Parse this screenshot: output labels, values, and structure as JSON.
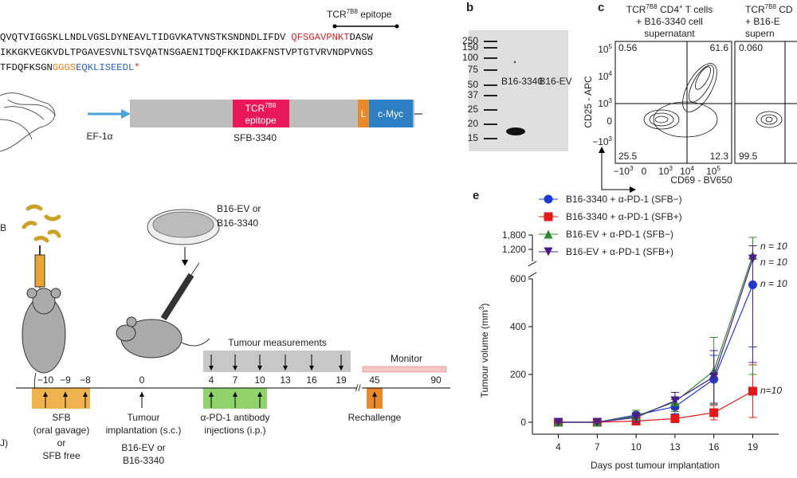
{
  "panel_a": {
    "epitope_label": {
      "base": "TCR",
      "sup": "7B8",
      "rest": " epitope"
    },
    "sequence": [
      [
        {
          "text": "QVQTVIGGSKLLNDLVGSLDYNEAVLTIDGVKATVNSTKSNDNDLIFDV",
          "color": "#111111"
        },
        {
          "text": "QFSGAVPNKT",
          "color": "#d62728"
        },
        {
          "text": "DASW",
          "color": "#111111"
        }
      ],
      [
        {
          "text": "IKKGKVEGKVDLTPGAVESVNLTSVQATNSGAENITDQFKKIDAKFNSTVPTGTVRVNDPVNGS",
          "color": "#111111"
        }
      ],
      [
        {
          "text": "TFDQFKSGN",
          "color": "#111111"
        },
        {
          "text": "GGGS",
          "color": "#e07b1a"
        },
        {
          "text": "EQKLISEEDL",
          "color": "#2a63b8"
        },
        {
          "text": "*",
          "color": "#d62728"
        }
      ]
    ],
    "construct": {
      "promoter": "EF-1α",
      "epitope": {
        "base": "TCR",
        "sup": "7B8",
        "rest": "epitope"
      },
      "linker": "L",
      "tag": "c-Myc",
      "name": "SFB-3340"
    }
  },
  "panel_b": {
    "label": "b",
    "ladder": [
      "250",
      "150",
      "100",
      "75",
      "50",
      "37",
      "25",
      "20",
      "15"
    ],
    "lanes": [
      "B16-3340",
      "B16-EV"
    ]
  },
  "panel_c": {
    "label": "c",
    "plot1": {
      "title": [
        [
          {
            "t": "TCR"
          },
          {
            "t": "7B8",
            "sup": true
          },
          {
            "t": " CD4"
          },
          {
            "t": "+",
            "sup": true
          },
          {
            "t": " T cells"
          }
        ],
        [
          {
            "t": "+ B16-3340 cell"
          }
        ],
        [
          {
            "t": "supernatant"
          }
        ]
      ],
      "quadrants": [
        "0.56",
        "61.6",
        "25.5",
        "12.3"
      ]
    },
    "plot2": {
      "title": [
        [
          {
            "t": "TCR"
          },
          {
            "t": "7B8",
            "sup": true
          },
          {
            "t": " CD"
          }
        ],
        [
          {
            "t": "+ B16-E"
          }
        ],
        [
          {
            "t": "supern"
          }
        ]
      ],
      "quadrants": [
        "0.060",
        "99.5"
      ]
    },
    "ylabel": "CD25 - APC",
    "xlabel": "CD69 - BV650",
    "yticks": [
      {
        "base": "10",
        "exp": "5"
      },
      {
        "base": "10",
        "exp": "4"
      },
      {
        "base": "10",
        "exp": "3"
      },
      {
        "base": "0"
      },
      {
        "base": "−10",
        "exp": "3"
      }
    ],
    "xticks": [
      {
        "base": "−10",
        "exp": "3"
      },
      {
        "base": "0"
      },
      {
        "base": "10",
        "exp": "3"
      },
      {
        "base": "10",
        "exp": "4"
      },
      {
        "base": "10",
        "exp": "5"
      }
    ]
  },
  "panel_d": {
    "corner": "B",
    "cutoff": "J)",
    "dish": [
      "B16-EV or",
      "B16-3340"
    ],
    "measurements": "Tumour measurements",
    "monitor": "Monitor",
    "ticks": [
      "−10",
      "−9",
      "−8",
      "0",
      "4",
      "7",
      "10",
      "13",
      "16",
      "19",
      "45",
      "90"
    ],
    "captions": [
      [
        "SFB",
        "(oral gavage)",
        "or",
        "SFB free"
      ],
      [
        "Tumour",
        "implantation (s.c.)",
        "B16-EV or",
        "B16-3340"
      ],
      [
        "α-PD-1 antibody",
        "injections (i.p.)"
      ],
      [
        "Rechallenge"
      ]
    ]
  },
  "chart_data": {
    "type": "line",
    "label": "e",
    "xlabel": "Days post tumour implantation",
    "ylabel": {
      "base": "Tumour volume (mm",
      "sup": "3",
      "rest": ")"
    },
    "x": [
      4,
      7,
      10,
      13,
      16,
      19
    ],
    "xlim": [
      2,
      21
    ],
    "xticks": [
      4,
      7,
      10,
      13,
      16,
      19
    ],
    "ylim": [
      -50,
      600
    ],
    "yticks": [
      0,
      200,
      400,
      600
    ],
    "ylim_top": [
      700,
      1800
    ],
    "yticks_top": [
      {
        "value": 1200,
        "label": "1,200"
      },
      {
        "value": 1800,
        "label": "1,800"
      }
    ],
    "series": [
      {
        "name": "B16-3340 + α-PD-1 (SFB−)",
        "color": "#1f3bd6",
        "marker": "circle",
        "values": [
          0,
          0,
          30,
          65,
          180,
          575
        ],
        "errors": [
          0,
          0,
          20,
          30,
          100,
          260
        ]
      },
      {
        "name": "B16-3340 + α-PD-1 (SFB+)",
        "color": "#e31a1c",
        "marker": "square",
        "values": [
          0,
          0,
          5,
          15,
          40,
          130
        ],
        "errors": [
          0,
          0,
          5,
          10,
          30,
          110
        ]
      },
      {
        "name": "B16-EV + α-PD-1 (SFB−)",
        "color": "#2e8b2e",
        "marker": "triangle",
        "values": [
          0,
          0,
          25,
          85,
          215,
          950
        ],
        "errors": [
          0,
          0,
          25,
          40,
          140,
          750
        ]
      },
      {
        "name": "B16-EV + α-PD-1 (SFB+)",
        "color": "#4b1f8a",
        "marker": "triangle-down",
        "values": [
          0,
          0,
          20,
          90,
          190,
          800
        ],
        "errors": [
          0,
          0,
          20,
          35,
          110,
          550
        ]
      }
    ],
    "annotations": [
      "n = 10",
      "n = 10",
      "n = 10",
      "n=10"
    ]
  }
}
